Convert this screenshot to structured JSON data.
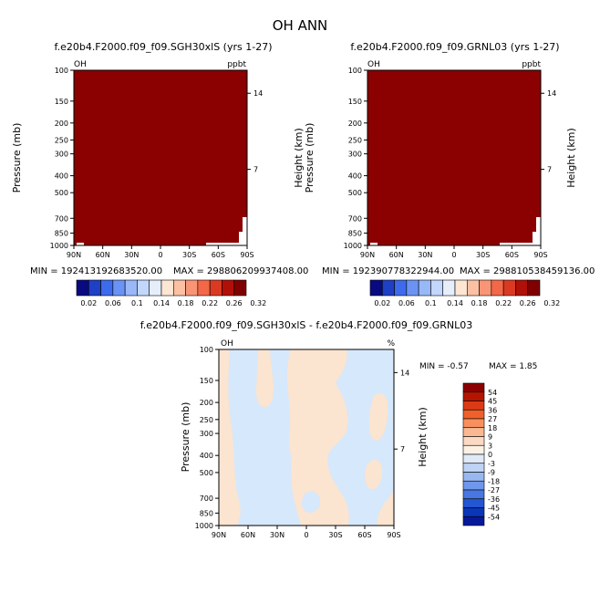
{
  "page_title": "OH ANN",
  "chart_data": [
    {
      "type": "heatmap",
      "title": "f.e20b4.F2000.f09_f09.SGH30xlS (yrs 1-27)",
      "field_label": "OH",
      "units_label": "ppbt",
      "ylabel": "Pressure (mb)",
      "y2label": "Height (km)",
      "x_ticks": [
        "90N",
        "60N",
        "30N",
        "0",
        "30S",
        "60S",
        "90S"
      ],
      "y_ticks": [
        "100",
        "150",
        "200",
        "250",
        "300",
        "400",
        "500",
        "700",
        "850",
        "1000"
      ],
      "y2_ticks": [
        "14",
        "7"
      ],
      "min_text": "MIN = 192413192683520.00",
      "max_text": "MAX = 298806209937408.00",
      "fill_color": "#8b0000",
      "colorbar_labels": [
        "0.02",
        "0.06",
        "0.1",
        "0.14",
        "0.18",
        "0.22",
        "0.26",
        "0.32"
      ]
    },
    {
      "type": "heatmap",
      "title": "f.e20b4.F2000.f09_f09.GRNL03 (yrs 1-27)",
      "field_label": "OH",
      "units_label": "ppbt",
      "ylabel": "Pressure (mb)",
      "y2label": "Height (km)",
      "x_ticks": [
        "90N",
        "60N",
        "30N",
        "0",
        "30S",
        "60S",
        "90S"
      ],
      "y_ticks": [
        "100",
        "150",
        "200",
        "250",
        "300",
        "400",
        "500",
        "700",
        "850",
        "1000"
      ],
      "y2_ticks": [
        "14",
        "7"
      ],
      "min_text": "MIN = 192390778322944.00",
      "max_text": "MAX = 298810538459136.00",
      "fill_color": "#8b0000",
      "colorbar_labels": [
        "0.02",
        "0.06",
        "0.1",
        "0.14",
        "0.18",
        "0.22",
        "0.26",
        "0.32"
      ]
    },
    {
      "type": "heatmap",
      "title": "f.e20b4.F2000.f09_f09.SGH30xlS - f.e20b4.F2000.f09_f09.GRNL03",
      "field_label": "OH",
      "units_label": "%",
      "ylabel": "Pressure (mb)",
      "y2label": "Height (km)",
      "x_ticks": [
        "90N",
        "60N",
        "30N",
        "0",
        "30S",
        "60S",
        "90S"
      ],
      "y_ticks": [
        "100",
        "150",
        "200",
        "250",
        "300",
        "400",
        "500",
        "700",
        "850",
        "1000"
      ],
      "y2_ticks": [
        "14",
        "7"
      ],
      "min_text": "MIN =  -0.57",
      "max_text": "MAX =    1.85",
      "fill_negative": "#d6e8fb",
      "fill_positive": "#fbe4d0",
      "colorbar_labels": [
        "54",
        "45",
        "36",
        "27",
        "18",
        "9",
        "3",
        "0",
        "-3",
        "-9",
        "-18",
        "-27",
        "-36",
        "-45",
        "-54"
      ]
    }
  ],
  "colorbars": {
    "top_colors": [
      "#0a0a80",
      "#1f3fc4",
      "#3d6bec",
      "#6b93f4",
      "#98b8f8",
      "#c2d7fb",
      "#e6eefc",
      "#fde6d4",
      "#fcc0a2",
      "#f89576",
      "#f26848",
      "#db3a22",
      "#b01008",
      "#7e0000"
    ],
    "diff_colors": [
      "#8b0000",
      "#b51500",
      "#dc3a17",
      "#f0602b",
      "#f7905e",
      "#f9b792",
      "#fbd9c3",
      "#fdf1e6",
      "#dfe9f8",
      "#bfd3f4",
      "#98b8f0",
      "#6f98ea",
      "#4877e2",
      "#2356d0",
      "#0a36b8",
      "#07199a"
    ]
  }
}
